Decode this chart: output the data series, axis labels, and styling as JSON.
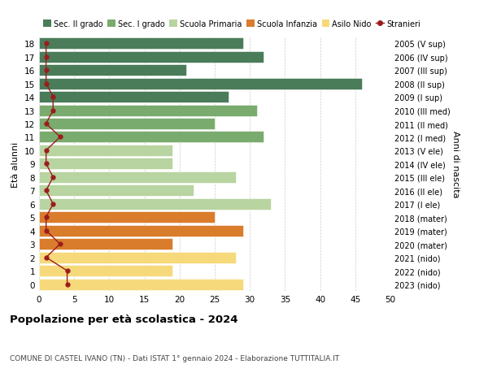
{
  "ages": [
    18,
    17,
    16,
    15,
    14,
    13,
    12,
    11,
    10,
    9,
    8,
    7,
    6,
    5,
    4,
    3,
    2,
    1,
    0
  ],
  "bar_values": [
    29,
    32,
    21,
    46,
    27,
    31,
    25,
    32,
    19,
    19,
    28,
    22,
    33,
    25,
    29,
    19,
    28,
    19,
    29
  ],
  "bar_colors": [
    "#4a7c59",
    "#4a7c59",
    "#4a7c59",
    "#4a7c59",
    "#4a7c59",
    "#7aab6e",
    "#7aab6e",
    "#7aab6e",
    "#b8d4a0",
    "#b8d4a0",
    "#b8d4a0",
    "#b8d4a0",
    "#b8d4a0",
    "#d97c2b",
    "#d97c2b",
    "#d97c2b",
    "#f5d97a",
    "#f5d97a",
    "#f5d97a"
  ],
  "stranieri_values": [
    1,
    1,
    1,
    1,
    2,
    2,
    1,
    3,
    1,
    1,
    2,
    1,
    2,
    1,
    1,
    3,
    1,
    4,
    4
  ],
  "right_labels": [
    "2005 (V sup)",
    "2006 (IV sup)",
    "2007 (III sup)",
    "2008 (II sup)",
    "2009 (I sup)",
    "2010 (III med)",
    "2011 (II med)",
    "2012 (I med)",
    "2013 (V ele)",
    "2014 (IV ele)",
    "2015 (III ele)",
    "2016 (II ele)",
    "2017 (I ele)",
    "2018 (mater)",
    "2019 (mater)",
    "2020 (mater)",
    "2021 (nido)",
    "2022 (nido)",
    "2023 (nido)"
  ],
  "legend_labels": [
    "Sec. II grado",
    "Sec. I grado",
    "Scuola Primaria",
    "Scuola Infanzia",
    "Asilo Nido",
    "Stranieri"
  ],
  "legend_colors": [
    "#4a7c59",
    "#7aab6e",
    "#b8d4a0",
    "#d97c2b",
    "#f5d97a",
    "#9b1c1c"
  ],
  "title": "Popolazione per età scolastica - 2024",
  "subtitle": "COMUNE DI CASTEL IVANO (TN) - Dati ISTAT 1° gennaio 2024 - Elaborazione TUTTITALIA.IT",
  "ylabel_left": "Età alunni",
  "ylabel_right": "Anni di nascita",
  "xlim": [
    0,
    50
  ],
  "xticks": [
    0,
    5,
    10,
    15,
    20,
    25,
    30,
    35,
    40,
    45,
    50
  ],
  "background_color": "#ffffff",
  "grid_color": "#cccccc",
  "stranieri_color": "#9b1c1c",
  "bar_height": 0.85
}
